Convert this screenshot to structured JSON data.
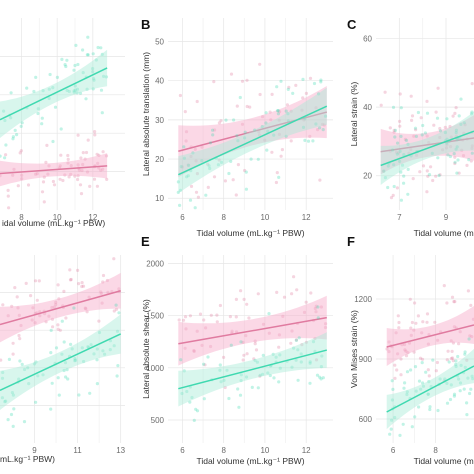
{
  "colors": {
    "pink": "#e07ba0",
    "teal": "#3fd9b0",
    "pink_band": "#f6a9c8",
    "teal_band": "#a8ecd8"
  },
  "chart_data": [
    {
      "label": "",
      "type": "scatter",
      "xlabel": "idal volume (mL.kg⁻¹ PBW)",
      "ylabel": "",
      "xticks": [
        8,
        10,
        12
      ],
      "yticks": [],
      "xlim": [
        6.8,
        13.8
      ],
      "ylim": [
        0,
        10
      ],
      "series": [
        {
          "color": "pink",
          "line": [
            [
              6.8,
              1.9
            ],
            [
              12.8,
              2.3
            ]
          ],
          "band": 0.35
        },
        {
          "color": "teal",
          "line": [
            [
              6.8,
              4.7
            ],
            [
              12.8,
              7.4
            ]
          ],
          "band": 0.5
        }
      ]
    },
    {
      "label": "B",
      "type": "scatter",
      "xlabel": "Tidal volume (mL.kg⁻¹ PBW)",
      "ylabel": "Lateral absolute translation (mm)",
      "xticks": [
        6,
        8,
        10,
        12
      ],
      "yticks": [
        10,
        20,
        30,
        40,
        50
      ],
      "xlim": [
        5.3,
        13.3
      ],
      "ylim": [
        7,
        56
      ],
      "series": [
        {
          "color": "pink",
          "line": [
            [
              5.8,
              22
            ],
            [
              13,
              32
            ]
          ],
          "band": 3.5
        },
        {
          "color": "teal",
          "line": [
            [
              5.8,
              16
            ],
            [
              13,
              33.5
            ]
          ],
          "band": 2.5
        }
      ]
    },
    {
      "label": "C",
      "type": "scatter",
      "xlabel": "Tidal volume (mL",
      "ylabel": "Lateral strain (%)",
      "xticks": [
        7,
        9
      ],
      "yticks": [
        20,
        40,
        60
      ],
      "xlim": [
        6,
        10.2
      ],
      "ylim": [
        10,
        66
      ],
      "series": [
        {
          "color": "pink",
          "line": [
            [
              6.2,
              27
            ],
            [
              10.2,
              31
            ]
          ],
          "band": 3.5
        },
        {
          "color": "teal",
          "line": [
            [
              6.2,
              23
            ],
            [
              10.2,
              33
            ]
          ],
          "band": 3
        }
      ]
    },
    {
      "label": "",
      "type": "scatter",
      "xlabel": "mL.kg⁻¹ PBW)",
      "ylabel": "",
      "xticks": [
        9,
        11,
        13
      ],
      "yticks": [],
      "xlim": [
        7.4,
        13.2
      ],
      "ylim": [
        0,
        10
      ],
      "series": [
        {
          "color": "pink",
          "line": [
            [
              7.4,
              6.3
            ],
            [
              13,
              8.1
            ]
          ],
          "band": 0.5
        },
        {
          "color": "teal",
          "line": [
            [
              7.4,
              2.8
            ],
            [
              13,
              5.8
            ]
          ],
          "band": 0.55
        }
      ]
    },
    {
      "label": "E",
      "type": "scatter",
      "xlabel": "Tidal volume (mL.kg⁻¹ PBW)",
      "ylabel": "Lateral absolute shear (%)",
      "xticks": [
        6,
        8,
        10,
        12
      ],
      "yticks": [
        500,
        1000,
        1500,
        2000
      ],
      "xlim": [
        5.3,
        13.3
      ],
      "ylim": [
        280,
        2080
      ],
      "series": [
        {
          "color": "pink",
          "line": [
            [
              5.8,
              1230
            ],
            [
              13,
              1480
            ]
          ],
          "band": 110
        },
        {
          "color": "teal",
          "line": [
            [
              5.8,
              800
            ],
            [
              13,
              1170
            ]
          ],
          "band": 90
        }
      ]
    },
    {
      "label": "F",
      "type": "scatter",
      "xlabel": "Tidal volume (mL",
      "ylabel": "Von Mises strain (%)",
      "xticks": [
        6,
        8
      ],
      "yticks": [
        600,
        900,
        1200
      ],
      "xlim": [
        5.2,
        9.8
      ],
      "ylim": [
        480,
        1420
      ],
      "series": [
        {
          "color": "pink",
          "line": [
            [
              5.7,
              960
            ],
            [
              9.8,
              1070
            ]
          ],
          "band": 50
        },
        {
          "color": "teal",
          "line": [
            [
              5.7,
              635
            ],
            [
              9.8,
              865
            ]
          ],
          "band": 45
        }
      ]
    }
  ]
}
